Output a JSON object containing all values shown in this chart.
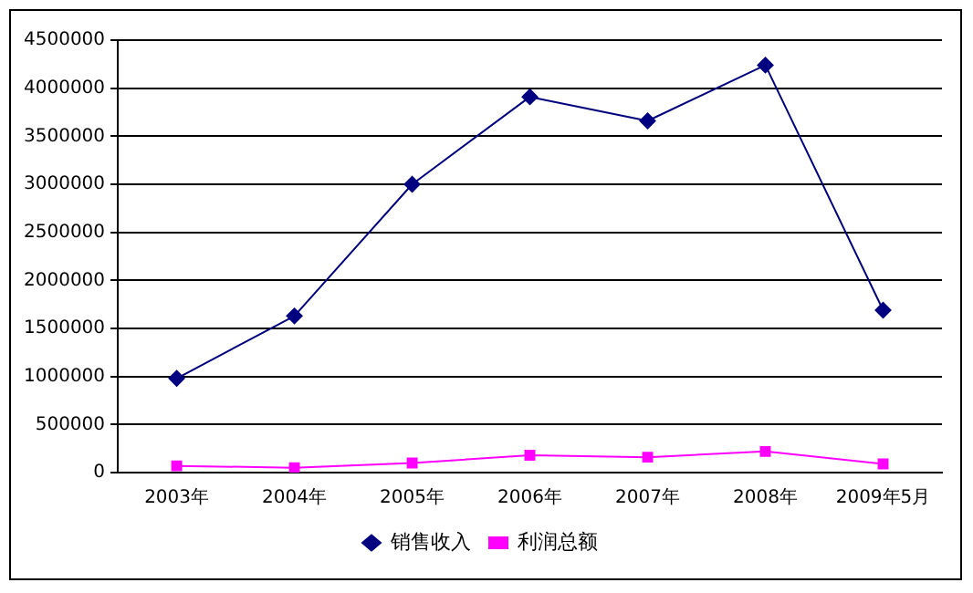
{
  "chart_data": {
    "type": "line",
    "categories": [
      "2003年",
      "2004年",
      "2005年",
      "2006年",
      "2007年",
      "2008年",
      "2009年5月"
    ],
    "series": [
      {
        "name": "销售收入",
        "color": "#000080",
        "marker": "diamond",
        "values": [
          980000,
          1630000,
          3000000,
          3910000,
          3660000,
          4240000,
          1690000
        ]
      },
      {
        "name": "利润总额",
        "color": "#ff00ff",
        "marker": "square",
        "values": [
          70000,
          50000,
          100000,
          180000,
          160000,
          220000,
          90000
        ]
      }
    ],
    "ylim": [
      0,
      4500000
    ],
    "yticks": [
      0,
      500000,
      1000000,
      1500000,
      2000000,
      2500000,
      3000000,
      3500000,
      4000000,
      4500000
    ],
    "grid": "y",
    "legend": "bottom",
    "line_style": "solid"
  }
}
